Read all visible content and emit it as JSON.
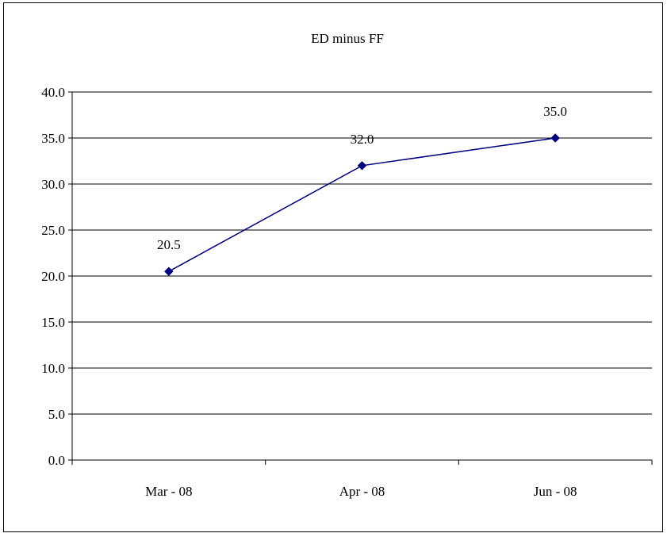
{
  "chart_data": {
    "type": "line",
    "title": "ED minus FF",
    "xlabel": "",
    "ylabel": "",
    "categories": [
      "Mar - 08",
      "Apr - 08",
      "Jun - 08"
    ],
    "series": [
      {
        "values": [
          20.5,
          32.0,
          35.0
        ],
        "data_labels": [
          "20.5",
          "32.0",
          "35.0"
        ]
      }
    ],
    "ylim": [
      0,
      40
    ],
    "y_ticks": [
      "0.0",
      "5.0",
      "10.0",
      "15.0",
      "20.0",
      "25.0",
      "30.0",
      "35.0",
      "40.0"
    ],
    "grid": true,
    "legend": "none",
    "colors": {
      "line": "#000080",
      "marker": "#000080",
      "grid": "#000000",
      "frame": "#000000"
    }
  }
}
